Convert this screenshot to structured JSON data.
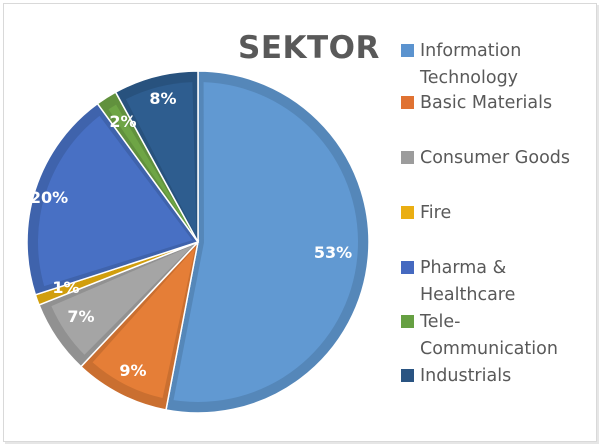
{
  "title": "SEKTOR",
  "chart_data": {
    "type": "pie",
    "title": "SEKTOR",
    "categories": [
      "Information Technology",
      "Basic Materials",
      "Consumer Goods",
      "Fire",
      "Pharma & Healthcare",
      "Tele-Communication",
      "Industrials"
    ],
    "values": [
      53,
      9,
      7,
      1,
      20,
      2,
      8
    ],
    "labels": [
      "53%",
      "9%",
      "7%",
      "1%",
      "20%",
      "2%",
      "8%"
    ],
    "colors": [
      "#6199d2",
      "#e57e37",
      "#a5a5a5",
      "#eeb30f",
      "#4870c4",
      "#6ea545",
      "#2e5d8f"
    ],
    "legend_position": "right",
    "start_angle_deg": 0,
    "direction": "clockwise"
  },
  "legend": [
    {
      "label": "Information Technology",
      "line1": "Information",
      "line2": "Technology",
      "color": "#5b93cf"
    },
    {
      "label": "Basic Materials",
      "line1": "Basic Materials",
      "line2": "",
      "color": "#e07232"
    },
    {
      "label": "Consumer Goods",
      "line1": "Consumer Goods",
      "line2": "",
      "color": "#9c9c9c"
    },
    {
      "label": "Fire",
      "line1": "Fire",
      "line2": "",
      "color": "#eaae12"
    },
    {
      "label": "Pharma & Healthcare",
      "line1": "Pharma &",
      "line2": "Healthcare",
      "color": "#4569c0"
    },
    {
      "label": "Tele-Communication",
      "line1": "Tele-",
      "line2": "Communication",
      "color": "#66a042"
    },
    {
      "label": "Industrials",
      "line1": "Industrials",
      "line2": "",
      "color": "#2a5482"
    }
  ]
}
